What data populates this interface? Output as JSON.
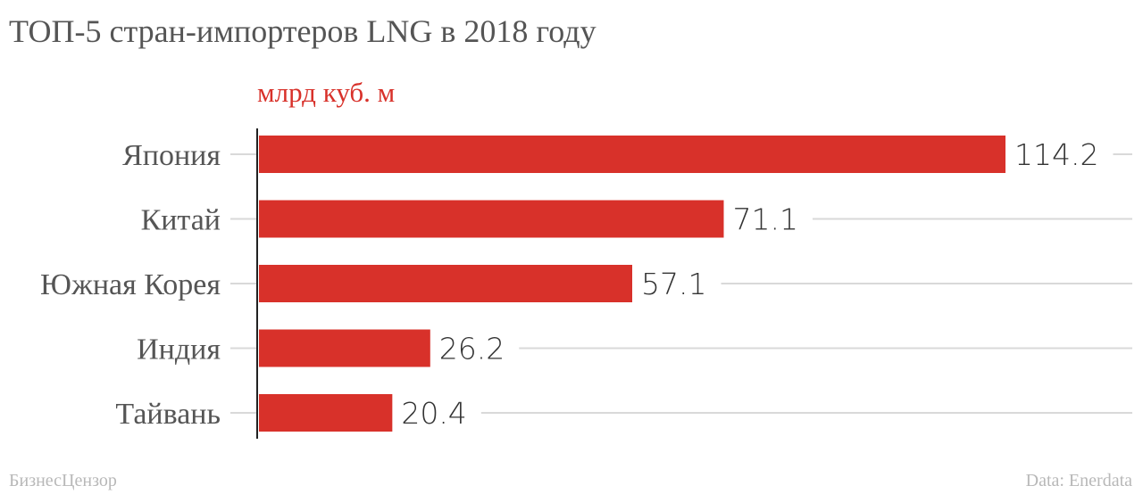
{
  "chart_data": {
    "type": "bar",
    "orientation": "horizontal",
    "title": "ТОП-5 стран-импортеров LNG в 2018 году",
    "unit_label": "млрд куб. м",
    "categories": [
      "Япония",
      "Китай",
      "Южная Корея",
      "Индия",
      "Тайвань"
    ],
    "values": [
      114.2,
      71.1,
      57.1,
      26.2,
      20.4
    ],
    "value_labels": [
      "114.2",
      "71.1",
      "57.1",
      "26.2",
      "20.4"
    ],
    "xlim": [
      0,
      114.2
    ],
    "bar_color": "#d8312a",
    "grid": true
  },
  "footer": {
    "source_left": "БизнесЦензор",
    "source_right": "Data: Enerdata"
  }
}
